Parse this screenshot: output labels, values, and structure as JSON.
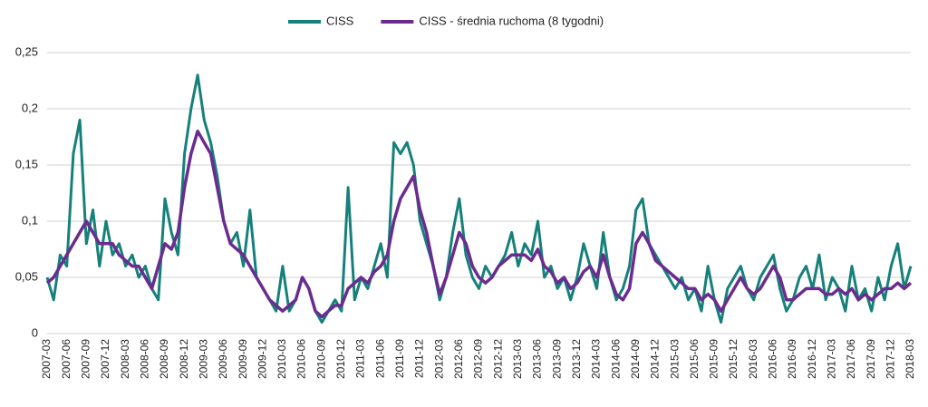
{
  "chart_data": {
    "type": "line",
    "categories": [
      "2007-03",
      null,
      null,
      "2007-06",
      null,
      null,
      "2007-09",
      null,
      null,
      "2007-12",
      null,
      null,
      "2008-03",
      null,
      null,
      "2008-06",
      null,
      null,
      "2008-09",
      null,
      null,
      "2008-12",
      null,
      null,
      "2009-03",
      null,
      null,
      "2009-06",
      null,
      null,
      "2009-09",
      null,
      null,
      "2009-12",
      null,
      null,
      "2010-03",
      null,
      null,
      "2010-06",
      null,
      null,
      "2010-09",
      null,
      null,
      "2010-12",
      null,
      null,
      "2011-03",
      null,
      null,
      "2011-06",
      null,
      null,
      "2011-09",
      null,
      null,
      "2011-12",
      null,
      null,
      "2012-03",
      null,
      null,
      "2012-06",
      null,
      null,
      "2012-09",
      null,
      null,
      "2012-12",
      null,
      null,
      "2013-03",
      null,
      null,
      "2013-06",
      null,
      null,
      "2013-09",
      null,
      null,
      "2013-12",
      null,
      null,
      "2014-03",
      null,
      null,
      "2014-06",
      null,
      null,
      "2014-09",
      null,
      null,
      "2014-12",
      null,
      null,
      "2015-03",
      null,
      null,
      "2015-06",
      null,
      null,
      "2015-09",
      null,
      null,
      "2015-12",
      null,
      null,
      "2016-03",
      null,
      null,
      "2016-06",
      null,
      null,
      "2016-09",
      null,
      null,
      "2016-12",
      null,
      null,
      "2017-03",
      null,
      null,
      "2017-06",
      null,
      null,
      "2017-09",
      null,
      null,
      "2017-12",
      null,
      null,
      "2018-03"
    ],
    "series": [
      {
        "name": "CISS",
        "color": "#16807a",
        "values": [
          0.05,
          0.03,
          0.07,
          0.06,
          0.16,
          0.19,
          0.08,
          0.11,
          0.06,
          0.1,
          0.07,
          0.08,
          0.06,
          0.07,
          0.05,
          0.06,
          0.04,
          0.03,
          0.12,
          0.09,
          0.07,
          0.16,
          0.2,
          0.23,
          0.19,
          0.17,
          0.14,
          0.1,
          0.08,
          0.09,
          0.06,
          0.11,
          0.05,
          0.04,
          0.03,
          0.02,
          0.06,
          0.02,
          0.03,
          0.05,
          0.04,
          0.02,
          0.01,
          0.02,
          0.03,
          0.02,
          0.13,
          0.03,
          0.05,
          0.04,
          0.06,
          0.08,
          0.05,
          0.17,
          0.16,
          0.17,
          0.15,
          0.1,
          0.08,
          0.06,
          0.03,
          0.05,
          0.09,
          0.12,
          0.07,
          0.05,
          0.04,
          0.06,
          0.05,
          0.06,
          0.07,
          0.09,
          0.06,
          0.08,
          0.07,
          0.1,
          0.05,
          0.06,
          0.04,
          0.05,
          0.03,
          0.05,
          0.08,
          0.06,
          0.04,
          0.09,
          0.05,
          0.03,
          0.04,
          0.06,
          0.11,
          0.12,
          0.08,
          0.07,
          0.06,
          0.05,
          0.04,
          0.05,
          0.03,
          0.04,
          0.02,
          0.06,
          0.03,
          0.01,
          0.04,
          0.05,
          0.06,
          0.04,
          0.03,
          0.05,
          0.06,
          0.07,
          0.04,
          0.02,
          0.03,
          0.05,
          0.06,
          0.04,
          0.07,
          0.03,
          0.05,
          0.04,
          0.02,
          0.06,
          0.03,
          0.04,
          0.02,
          0.05,
          0.03,
          0.06,
          0.08,
          0.04,
          0.06
        ]
      },
      {
        "name": "CISS - średnia ruchoma (8 tygodni)",
        "color": "#6a2c8e",
        "values": [
          0.045,
          0.05,
          0.06,
          0.07,
          0.08,
          0.09,
          0.1,
          0.09,
          0.08,
          0.08,
          0.08,
          0.07,
          0.065,
          0.06,
          0.06,
          0.05,
          0.04,
          0.06,
          0.08,
          0.075,
          0.09,
          0.13,
          0.16,
          0.18,
          0.17,
          0.16,
          0.13,
          0.1,
          0.08,
          0.075,
          0.07,
          0.06,
          0.05,
          0.04,
          0.03,
          0.025,
          0.02,
          0.025,
          0.03,
          0.05,
          0.04,
          0.02,
          0.015,
          0.02,
          0.025,
          0.025,
          0.04,
          0.045,
          0.05,
          0.045,
          0.055,
          0.06,
          0.07,
          0.1,
          0.12,
          0.13,
          0.14,
          0.11,
          0.09,
          0.06,
          0.035,
          0.05,
          0.07,
          0.09,
          0.08,
          0.06,
          0.05,
          0.045,
          0.05,
          0.06,
          0.065,
          0.07,
          0.07,
          0.07,
          0.065,
          0.075,
          0.06,
          0.055,
          0.045,
          0.05,
          0.04,
          0.045,
          0.055,
          0.06,
          0.05,
          0.07,
          0.05,
          0.035,
          0.03,
          0.04,
          0.08,
          0.09,
          0.08,
          0.065,
          0.06,
          0.055,
          0.05,
          0.045,
          0.04,
          0.04,
          0.03,
          0.035,
          0.03,
          0.02,
          0.03,
          0.04,
          0.05,
          0.04,
          0.035,
          0.04,
          0.05,
          0.06,
          0.05,
          0.03,
          0.03,
          0.035,
          0.04,
          0.04,
          0.04,
          0.035,
          0.035,
          0.04,
          0.035,
          0.04,
          0.03,
          0.035,
          0.03,
          0.035,
          0.04,
          0.04,
          0.045,
          0.04,
          0.045
        ]
      }
    ],
    "ylim": [
      0,
      0.25
    ],
    "yticks": [
      0,
      {
        "value": 0.05,
        "label": "0,05"
      },
      {
        "value": 0.1,
        "label": "0,1"
      },
      {
        "value": 0.15,
        "label": "0,15"
      },
      {
        "value": 0.2,
        "label": "0,2"
      },
      {
        "value": 0.25,
        "label": "0,25"
      }
    ],
    "grid": true,
    "legend": "top"
  }
}
